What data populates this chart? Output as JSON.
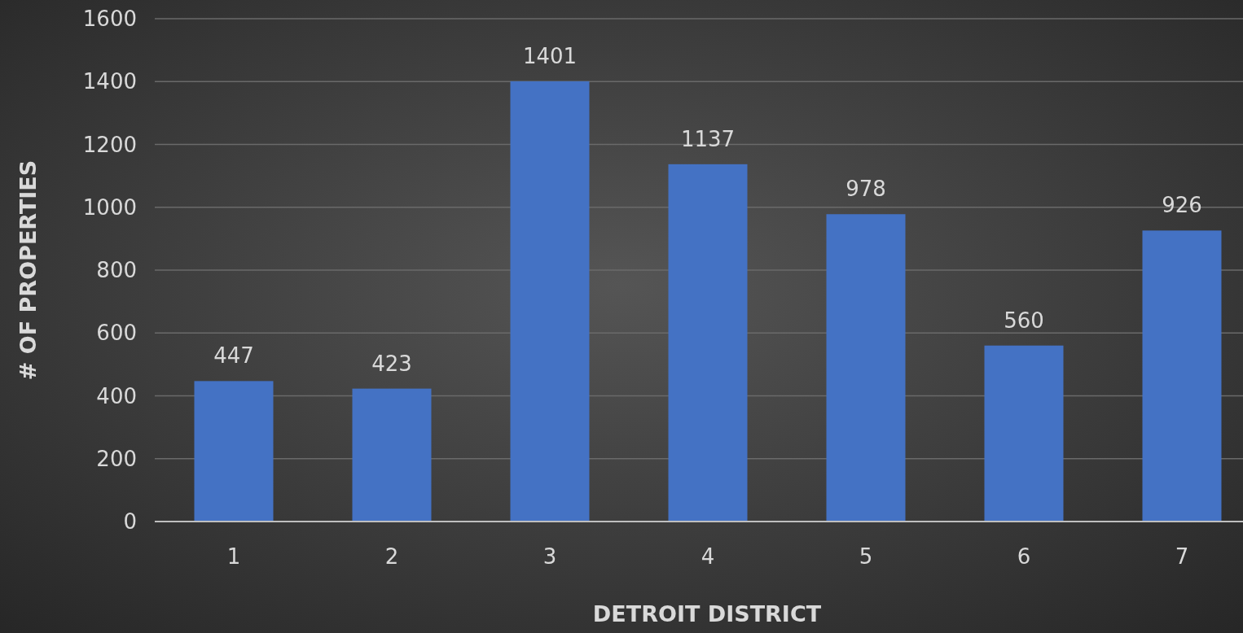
{
  "chart_data": {
    "type": "bar",
    "xlabel": "DETROIT DISTRICT",
    "ylabel": "# OF PROPERTIES",
    "categories": [
      "1",
      "2",
      "3",
      "4",
      "5",
      "6",
      "7"
    ],
    "values": [
      447,
      423,
      1401,
      1137,
      978,
      560,
      926
    ],
    "color": "#4472c4",
    "ylim": [
      0,
      1600
    ],
    "yticks": [
      0,
      200,
      400,
      600,
      800,
      1000,
      1200,
      1400,
      1600
    ],
    "grid": "y",
    "data_labels": true
  }
}
